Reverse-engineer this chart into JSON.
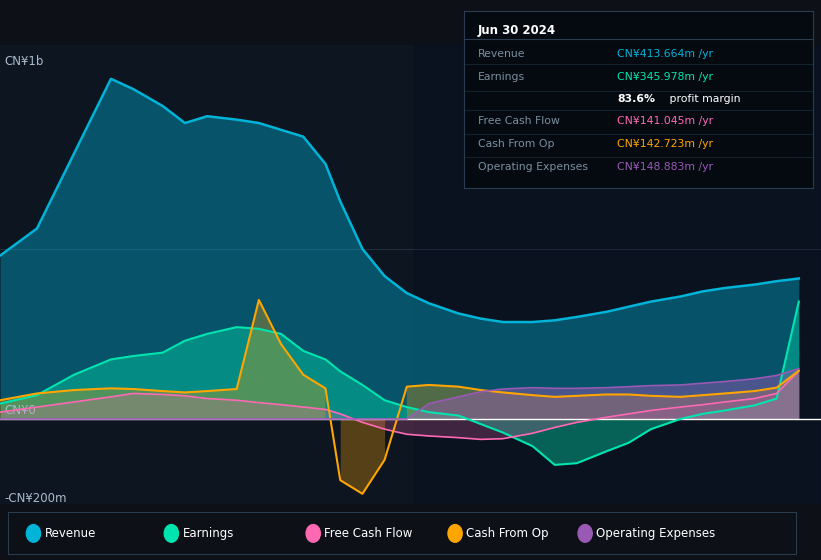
{
  "bg_color": "#0d1117",
  "plot_bg_color": "#0d1521",
  "grid_color": "#253545",
  "zero_line_color": "#ffffff",
  "title_label": "CN¥1b",
  "bottom_label": "-CN¥200m",
  "zero_label": "CN¥0",
  "years": [
    2013.5,
    2014.0,
    2014.5,
    2015.0,
    2015.3,
    2015.7,
    2016.0,
    2016.3,
    2016.7,
    2017.0,
    2017.3,
    2017.6,
    2017.9,
    2018.1,
    2018.4,
    2018.7,
    2019.0,
    2019.3,
    2019.7,
    2020.0,
    2020.3,
    2020.7,
    2021.0,
    2021.3,
    2021.7,
    2022.0,
    2022.3,
    2022.7,
    2023.0,
    2023.3,
    2023.7,
    2024.0,
    2024.3
  ],
  "revenue": [
    480,
    560,
    780,
    1000,
    970,
    920,
    870,
    890,
    880,
    870,
    850,
    830,
    750,
    640,
    500,
    420,
    370,
    340,
    310,
    295,
    285,
    285,
    290,
    300,
    315,
    330,
    345,
    360,
    375,
    385,
    395,
    405,
    413
  ],
  "earnings": [
    45,
    70,
    130,
    175,
    185,
    195,
    230,
    250,
    270,
    265,
    250,
    200,
    175,
    140,
    100,
    55,
    35,
    20,
    10,
    -15,
    -40,
    -80,
    -135,
    -130,
    -95,
    -70,
    -30,
    0,
    15,
    25,
    40,
    60,
    345
  ],
  "free_cash_flow": [
    20,
    35,
    50,
    65,
    75,
    72,
    68,
    60,
    55,
    48,
    42,
    35,
    28,
    15,
    -10,
    -30,
    -45,
    -50,
    -55,
    -60,
    -58,
    -42,
    -25,
    -10,
    5,
    15,
    25,
    35,
    42,
    50,
    60,
    75,
    141
  ],
  "cash_from_op": [
    55,
    75,
    85,
    90,
    88,
    82,
    78,
    82,
    88,
    350,
    220,
    130,
    90,
    -180,
    -220,
    -120,
    95,
    100,
    95,
    85,
    78,
    70,
    65,
    68,
    72,
    72,
    68,
    65,
    70,
    75,
    82,
    92,
    142
  ],
  "operating_expenses": [
    0,
    0,
    0,
    0,
    0,
    0,
    0,
    0,
    0,
    0,
    0,
    0,
    0,
    0,
    0,
    0,
    0,
    45,
    65,
    80,
    88,
    92,
    90,
    90,
    92,
    95,
    98,
    100,
    105,
    110,
    118,
    128,
    148
  ],
  "revenue_color": "#00b4d8",
  "earnings_color": "#00e5b0",
  "fcf_color": "#ff69b4",
  "cashop_color": "#ffa500",
  "opex_color": "#9b59b6",
  "legend_items": [
    "Revenue",
    "Earnings",
    "Free Cash Flow",
    "Cash From Op",
    "Operating Expenses"
  ],
  "legend_colors": [
    "#00b4d8",
    "#00e5b0",
    "#ff69b4",
    "#ffa500",
    "#9b59b6"
  ],
  "info_box": {
    "date": "Jun 30 2024",
    "revenue_label": "Revenue",
    "revenue_value": "CN¥413.664m /yr",
    "revenue_color": "#00b4d8",
    "earnings_label": "Earnings",
    "earnings_value": "CN¥345.978m /yr",
    "earnings_color": "#00e5b0",
    "margin_value": "83.6% profit margin",
    "fcf_label": "Free Cash Flow",
    "fcf_value": "CN¥141.045m /yr",
    "fcf_color": "#ff69b4",
    "cashop_label": "Cash From Op",
    "cashop_value": "CN¥142.723m /yr",
    "cashop_color": "#ffa500",
    "opex_label": "Operating Expenses",
    "opex_value": "CN¥148.883m /yr",
    "opex_color": "#9b59b6"
  },
  "xlim": [
    2013.5,
    2024.6
  ],
  "ylim": [
    -250,
    1100
  ],
  "xtick_years": [
    2014,
    2015,
    2016,
    2017,
    2018,
    2019,
    2020,
    2021,
    2022,
    2023,
    2024
  ]
}
